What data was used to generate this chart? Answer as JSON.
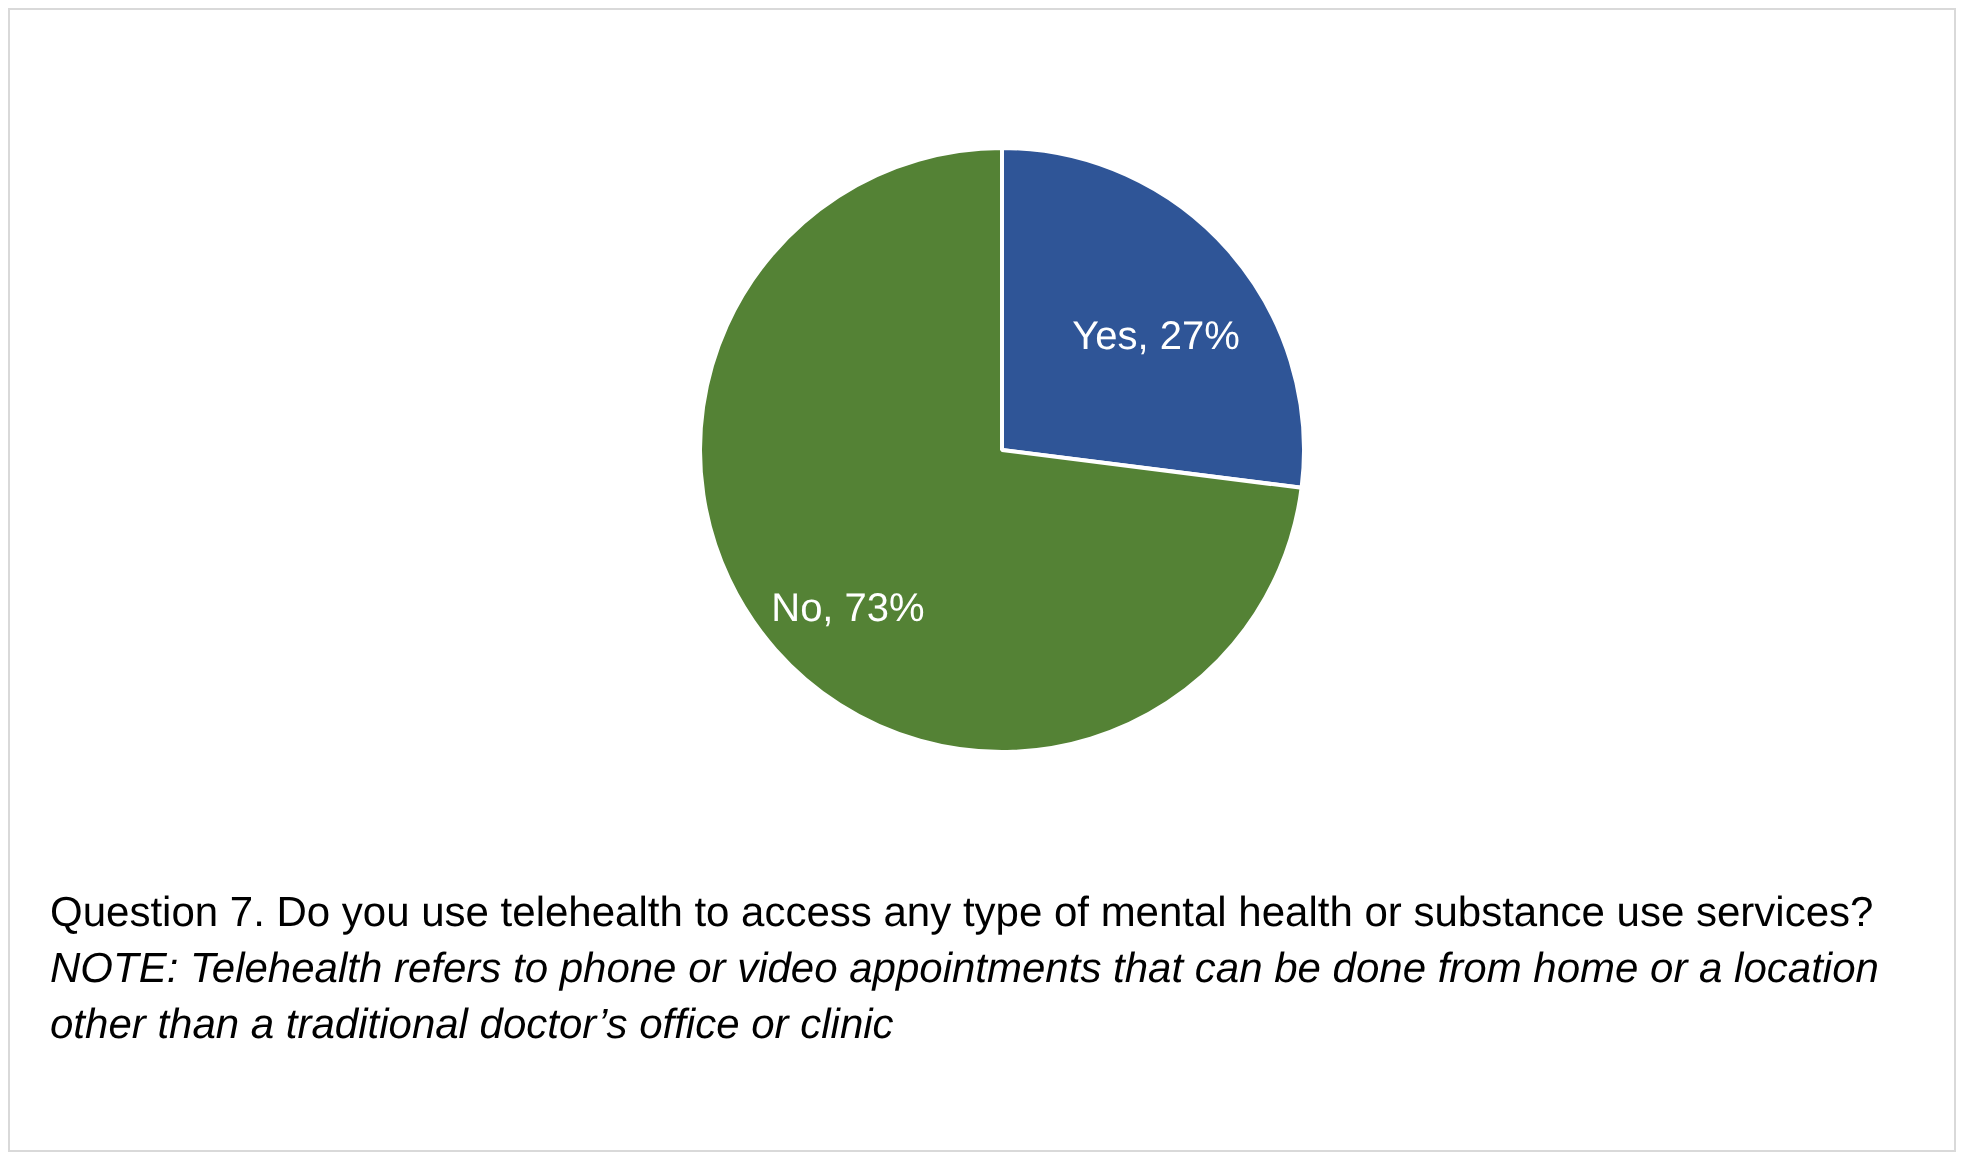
{
  "chart_data": {
    "type": "pie",
    "categories": [
      "Yes",
      "No"
    ],
    "values": [
      27,
      73
    ],
    "colors": [
      "#2f5597",
      "#548235"
    ],
    "value_labels": [
      "27%",
      "73%"
    ],
    "legend": false,
    "annotations": [
      "Question 7. Do you use telehealth to access any type of mental health or substance use services?",
      "NOTE: Telehealth refers to phone or video appointments that can be done from home or a location other than a traditional doctor’s office or clinic"
    ]
  }
}
